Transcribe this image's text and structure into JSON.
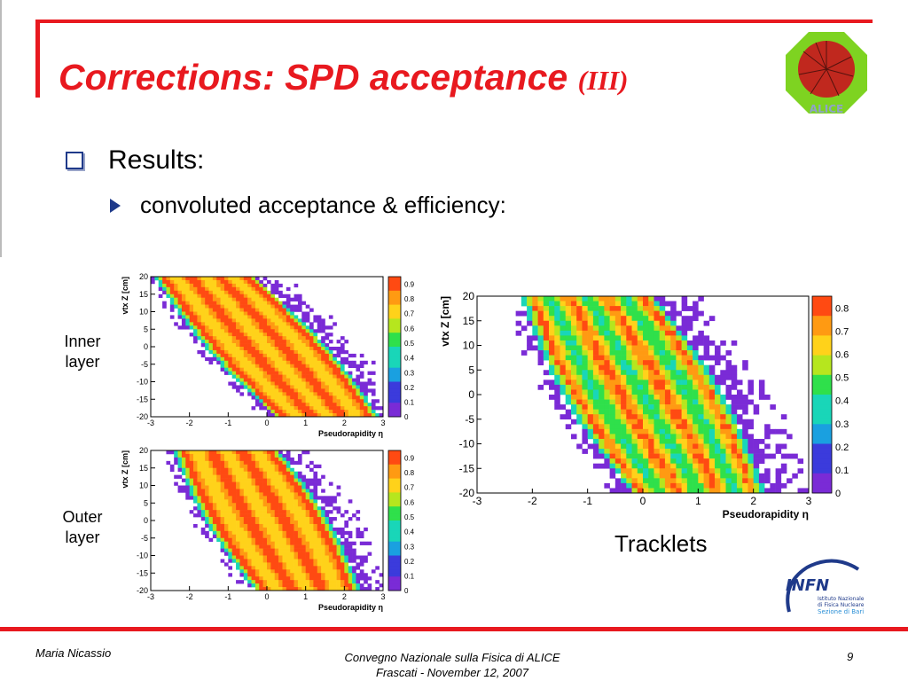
{
  "slide": {
    "title_main": "Corrections: SPD acceptance",
    "title_suffix": "(III)",
    "bullet": "Results:",
    "sub_bullet": "convoluted acceptance & efficiency:",
    "label_inner_line1": "Inner",
    "label_inner_line2": "layer",
    "label_outer_line1": "Outer",
    "label_outer_line2": "layer",
    "label_tracklets": "Tracklets",
    "logo_alice": "ALICE",
    "logo_infn": "INFN",
    "infn_line1": "Istituto Nazionale",
    "infn_line2": "di Fisica Nucleare",
    "infn_line3": "Sezione di Bari",
    "colors": {
      "accent": "#e8191f",
      "bullet": "#1f3a8a"
    }
  },
  "footer": {
    "author": "Maria Nicassio",
    "conference_line1": "Convegno Nazionale sulla Fisica di ALICE",
    "conference_line2": "Frascati -  November 12, 2007",
    "page_number": "9"
  },
  "chart_data": [
    {
      "type": "heatmap",
      "panel": "inner",
      "xlabel": "Pseudorapidity η",
      "ylabel": "vtx Z [cm]",
      "xlim": [
        -3,
        3
      ],
      "ylim": [
        -20,
        20
      ],
      "x_ticks": [
        "-3",
        "-2",
        "-1",
        "0",
        "1",
        "2",
        "3"
      ],
      "y_ticks": [
        "20",
        "15",
        "10",
        "5",
        "0",
        "-5",
        "-10",
        "-15",
        "-20"
      ],
      "colorbar_ticks": [
        "0.9",
        "0.8",
        "0.7",
        "0.6",
        "0.5",
        "0.4",
        "0.3",
        "0.2",
        "0.1",
        "0"
      ],
      "band_edges": {
        "lower_at_z20": -2.9,
        "lower_at_zm20": 0.2,
        "upper_at_z20": -0.3,
        "upper_at_zm20": 2.9
      }
    },
    {
      "type": "heatmap",
      "panel": "outer",
      "xlabel": "Pseudorapidity η",
      "ylabel": "vtx Z [cm]",
      "xlim": [
        -3,
        3
      ],
      "ylim": [
        -20,
        20
      ],
      "x_ticks": [
        "-3",
        "-2",
        "-1",
        "0",
        "1",
        "2",
        "3"
      ],
      "y_ticks": [
        "20",
        "15",
        "10",
        "5",
        "0",
        "-5",
        "-10",
        "-15",
        "-20"
      ],
      "colorbar_ticks": [
        "0.9",
        "0.8",
        "0.7",
        "0.6",
        "0.5",
        "0.4",
        "0.3",
        "0.2",
        "0.1",
        "0"
      ],
      "band_edges": {
        "lower_at_z20": -2.4,
        "lower_at_zm20": -0.3,
        "upper_at_z20": 0.3,
        "upper_at_zm20": 2.4
      }
    },
    {
      "type": "heatmap",
      "panel": "tracklets",
      "xlabel": "Pseudorapidity η",
      "ylabel": "vtx Z [cm]",
      "xlim": [
        -3,
        3
      ],
      "ylim": [
        -20,
        20
      ],
      "x_ticks": [
        "-3",
        "-2",
        "-1",
        "0",
        "1",
        "2",
        "3"
      ],
      "y_ticks": [
        "20",
        "15",
        "10",
        "5",
        "0",
        "-5",
        "-10",
        "-15",
        "-20"
      ],
      "colorbar_ticks": [
        "0.8",
        "0.7",
        "0.6",
        "0.5",
        "0.4",
        "0.3",
        "0.2",
        "0.1",
        "0"
      ],
      "band_edges": {
        "lower_at_z20": -2.2,
        "lower_at_zm20": -0.2,
        "upper_at_z20": 0.2,
        "upper_at_zm20": 2.2
      }
    }
  ]
}
